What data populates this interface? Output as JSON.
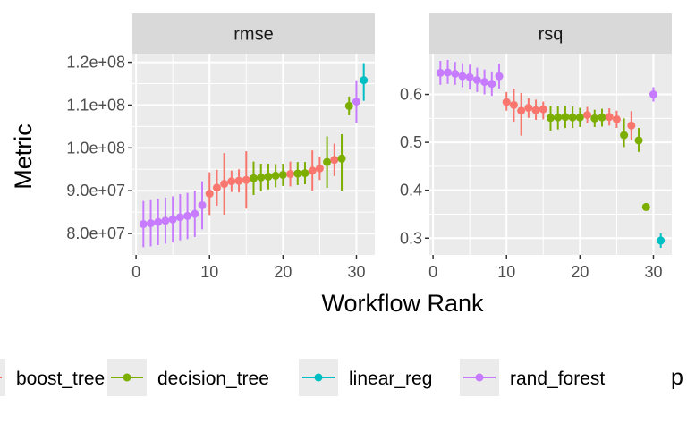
{
  "chart_data": {
    "type": "scatter",
    "xlabel": "Workflow Rank",
    "ylabel": "Metric",
    "legend_position": "bottom",
    "colors": {
      "boost_tree": "#F8766D",
      "decision_tree": "#7CAE00",
      "linear_reg": "#00BFC4",
      "rand_forest": "#C77CFF"
    },
    "legend": [
      {
        "key": "boost_tree",
        "label": "boost_tree"
      },
      {
        "key": "decision_tree",
        "label": "decision_tree"
      },
      {
        "key": "linear_reg",
        "label": "linear_reg"
      },
      {
        "key": "rand_forest",
        "label": "rand_forest"
      },
      {
        "key": "",
        "label": "p"
      }
    ],
    "panels": [
      {
        "title": "rmse",
        "xlim": [
          -0.5,
          32.5
        ],
        "ylim": [
          75000000,
          122000000
        ],
        "x_ticks": [
          0,
          10,
          20,
          30
        ],
        "x_tick_labels": [
          "0",
          "10",
          "20",
          "30"
        ],
        "y_ticks": [
          80000000,
          90000000,
          100000000,
          110000000,
          120000000
        ],
        "y_tick_labels": [
          "8.0e+07",
          "9.0e+07",
          "1.0e+08",
          "1.1e+08",
          "1.2e+08"
        ],
        "points": [
          {
            "rank": 1,
            "model": "rand_forest",
            "mean": 82200000,
            "lower": 76800000,
            "upper": 87600000
          },
          {
            "rank": 2,
            "model": "rand_forest",
            "mean": 82400000,
            "lower": 77000000,
            "upper": 87800000
          },
          {
            "rank": 3,
            "model": "rand_forest",
            "mean": 82700000,
            "lower": 77300000,
            "upper": 88100000
          },
          {
            "rank": 4,
            "model": "rand_forest",
            "mean": 83000000,
            "lower": 77600000,
            "upper": 88400000
          },
          {
            "rank": 5,
            "model": "rand_forest",
            "mean": 83300000,
            "lower": 77900000,
            "upper": 88700000
          },
          {
            "rank": 6,
            "model": "rand_forest",
            "mean": 83800000,
            "lower": 78400000,
            "upper": 89200000
          },
          {
            "rank": 7,
            "model": "rand_forest",
            "mean": 84100000,
            "lower": 78700000,
            "upper": 89500000
          },
          {
            "rank": 8,
            "model": "rand_forest",
            "mean": 84600000,
            "lower": 79200000,
            "upper": 90000000
          },
          {
            "rank": 9,
            "model": "rand_forest",
            "mean": 86600000,
            "lower": 81000000,
            "upper": 92200000
          },
          {
            "rank": 10,
            "model": "boost_tree",
            "mean": 89300000,
            "lower": 84300000,
            "upper": 94300000
          },
          {
            "rank": 11,
            "model": "boost_tree",
            "mean": 90700000,
            "lower": 86500000,
            "upper": 94900000
          },
          {
            "rank": 12,
            "model": "boost_tree",
            "mean": 91600000,
            "lower": 84400000,
            "upper": 98800000
          },
          {
            "rank": 13,
            "model": "boost_tree",
            "mean": 92200000,
            "lower": 89700000,
            "upper": 94700000
          },
          {
            "rank": 14,
            "model": "boost_tree",
            "mean": 92300000,
            "lower": 89600000,
            "upper": 95000000
          },
          {
            "rank": 15,
            "model": "boost_tree",
            "mean": 92500000,
            "lower": 85800000,
            "upper": 99200000
          },
          {
            "rank": 16,
            "model": "decision_tree",
            "mean": 92900000,
            "lower": 89000000,
            "upper": 96800000
          },
          {
            "rank": 17,
            "model": "decision_tree",
            "mean": 93100000,
            "lower": 89900000,
            "upper": 96300000
          },
          {
            "rank": 18,
            "model": "decision_tree",
            "mean": 93300000,
            "lower": 90300000,
            "upper": 96300000
          },
          {
            "rank": 19,
            "model": "decision_tree",
            "mean": 93500000,
            "lower": 90800000,
            "upper": 96200000
          },
          {
            "rank": 20,
            "model": "decision_tree",
            "mean": 93700000,
            "lower": 91100000,
            "upper": 96300000
          },
          {
            "rank": 21,
            "model": "boost_tree",
            "mean": 93900000,
            "lower": 91000000,
            "upper": 96800000
          },
          {
            "rank": 22,
            "model": "decision_tree",
            "mean": 94000000,
            "lower": 91300000,
            "upper": 96700000
          },
          {
            "rank": 23,
            "model": "decision_tree",
            "mean": 94100000,
            "lower": 91500000,
            "upper": 96700000
          },
          {
            "rank": 24,
            "model": "boost_tree",
            "mean": 94700000,
            "lower": 90000000,
            "upper": 99400000
          },
          {
            "rank": 25,
            "model": "boost_tree",
            "mean": 95200000,
            "lower": 92500000,
            "upper": 97900000
          },
          {
            "rank": 26,
            "model": "decision_tree",
            "mean": 96700000,
            "lower": 90700000,
            "upper": 102700000
          },
          {
            "rank": 27,
            "model": "boost_tree",
            "mean": 97200000,
            "lower": 93400000,
            "upper": 101000000
          },
          {
            "rank": 28,
            "model": "decision_tree",
            "mean": 97500000,
            "lower": 90000000,
            "upper": 103200000
          },
          {
            "rank": 29,
            "model": "decision_tree",
            "mean": 109800000,
            "lower": 107600000,
            "upper": 112000000
          },
          {
            "rank": 30,
            "model": "rand_forest",
            "mean": 110800000,
            "lower": 105800000,
            "upper": 115800000
          },
          {
            "rank": 31,
            "model": "linear_reg",
            "mean": 115800000,
            "lower": 111000000,
            "upper": 119800000
          }
        ]
      },
      {
        "title": "rsq",
        "xlim": [
          -0.5,
          32.5
        ],
        "ylim": [
          0.265,
          0.685
        ],
        "x_ticks": [
          0,
          10,
          20,
          30
        ],
        "x_tick_labels": [
          "0",
          "10",
          "20",
          "30"
        ],
        "y_ticks": [
          0.3,
          0.4,
          0.5,
          0.6
        ],
        "y_tick_labels": [
          "0.3",
          "0.4",
          "0.5",
          "0.6"
        ],
        "points": [
          {
            "rank": 1,
            "model": "rand_forest",
            "mean": 0.645,
            "lower": 0.62,
            "upper": 0.67
          },
          {
            "rank": 2,
            "model": "rand_forest",
            "mean": 0.646,
            "lower": 0.622,
            "upper": 0.672
          },
          {
            "rank": 3,
            "model": "rand_forest",
            "mean": 0.643,
            "lower": 0.62,
            "upper": 0.668
          },
          {
            "rank": 4,
            "model": "rand_forest",
            "mean": 0.638,
            "lower": 0.615,
            "upper": 0.665
          },
          {
            "rank": 5,
            "model": "rand_forest",
            "mean": 0.636,
            "lower": 0.61,
            "upper": 0.662
          },
          {
            "rank": 6,
            "model": "rand_forest",
            "mean": 0.63,
            "lower": 0.605,
            "upper": 0.656
          },
          {
            "rank": 7,
            "model": "rand_forest",
            "mean": 0.626,
            "lower": 0.6,
            "upper": 0.652
          },
          {
            "rank": 8,
            "model": "rand_forest",
            "mean": 0.622,
            "lower": 0.597,
            "upper": 0.648
          },
          {
            "rank": 9,
            "model": "rand_forest",
            "mean": 0.638,
            "lower": 0.612,
            "upper": 0.664
          },
          {
            "rank": 10,
            "model": "boost_tree",
            "mean": 0.584,
            "lower": 0.566,
            "upper": 0.605
          },
          {
            "rank": 11,
            "model": "boost_tree",
            "mean": 0.578,
            "lower": 0.543,
            "upper": 0.612
          },
          {
            "rank": 12,
            "model": "boost_tree",
            "mean": 0.566,
            "lower": 0.514,
            "upper": 0.603
          },
          {
            "rank": 13,
            "model": "boost_tree",
            "mean": 0.572,
            "lower": 0.551,
            "upper": 0.592
          },
          {
            "rank": 14,
            "model": "boost_tree",
            "mean": 0.567,
            "lower": 0.547,
            "upper": 0.589
          },
          {
            "rank": 15,
            "model": "boost_tree",
            "mean": 0.569,
            "lower": 0.548,
            "upper": 0.585
          },
          {
            "rank": 16,
            "model": "decision_tree",
            "mean": 0.551,
            "lower": 0.524,
            "upper": 0.576
          },
          {
            "rank": 17,
            "model": "decision_tree",
            "mean": 0.552,
            "lower": 0.527,
            "upper": 0.575
          },
          {
            "rank": 18,
            "model": "decision_tree",
            "mean": 0.553,
            "lower": 0.53,
            "upper": 0.576
          },
          {
            "rank": 19,
            "model": "decision_tree",
            "mean": 0.552,
            "lower": 0.53,
            "upper": 0.575
          },
          {
            "rank": 20,
            "model": "decision_tree",
            "mean": 0.552,
            "lower": 0.532,
            "upper": 0.572
          },
          {
            "rank": 21,
            "model": "boost_tree",
            "mean": 0.557,
            "lower": 0.54,
            "upper": 0.574
          },
          {
            "rank": 22,
            "model": "decision_tree",
            "mean": 0.55,
            "lower": 0.532,
            "upper": 0.568
          },
          {
            "rank": 23,
            "model": "decision_tree",
            "mean": 0.552,
            "lower": 0.533,
            "upper": 0.57
          },
          {
            "rank": 24,
            "model": "boost_tree",
            "mean": 0.553,
            "lower": 0.535,
            "upper": 0.571
          },
          {
            "rank": 25,
            "model": "boost_tree",
            "mean": 0.548,
            "lower": 0.53,
            "upper": 0.566
          },
          {
            "rank": 26,
            "model": "decision_tree",
            "mean": 0.515,
            "lower": 0.49,
            "upper": 0.55
          },
          {
            "rank": 27,
            "model": "boost_tree",
            "mean": 0.535,
            "lower": 0.505,
            "upper": 0.565
          },
          {
            "rank": 28,
            "model": "decision_tree",
            "mean": 0.504,
            "lower": 0.48,
            "upper": 0.53
          },
          {
            "rank": 29,
            "model": "decision_tree",
            "mean": 0.365,
            "lower": 0.362,
            "upper": 0.368
          },
          {
            "rank": 30,
            "model": "rand_forest",
            "mean": 0.6,
            "lower": 0.585,
            "upper": 0.615
          },
          {
            "rank": 31,
            "model": "linear_reg",
            "mean": 0.295,
            "lower": 0.28,
            "upper": 0.31
          }
        ]
      }
    ]
  }
}
